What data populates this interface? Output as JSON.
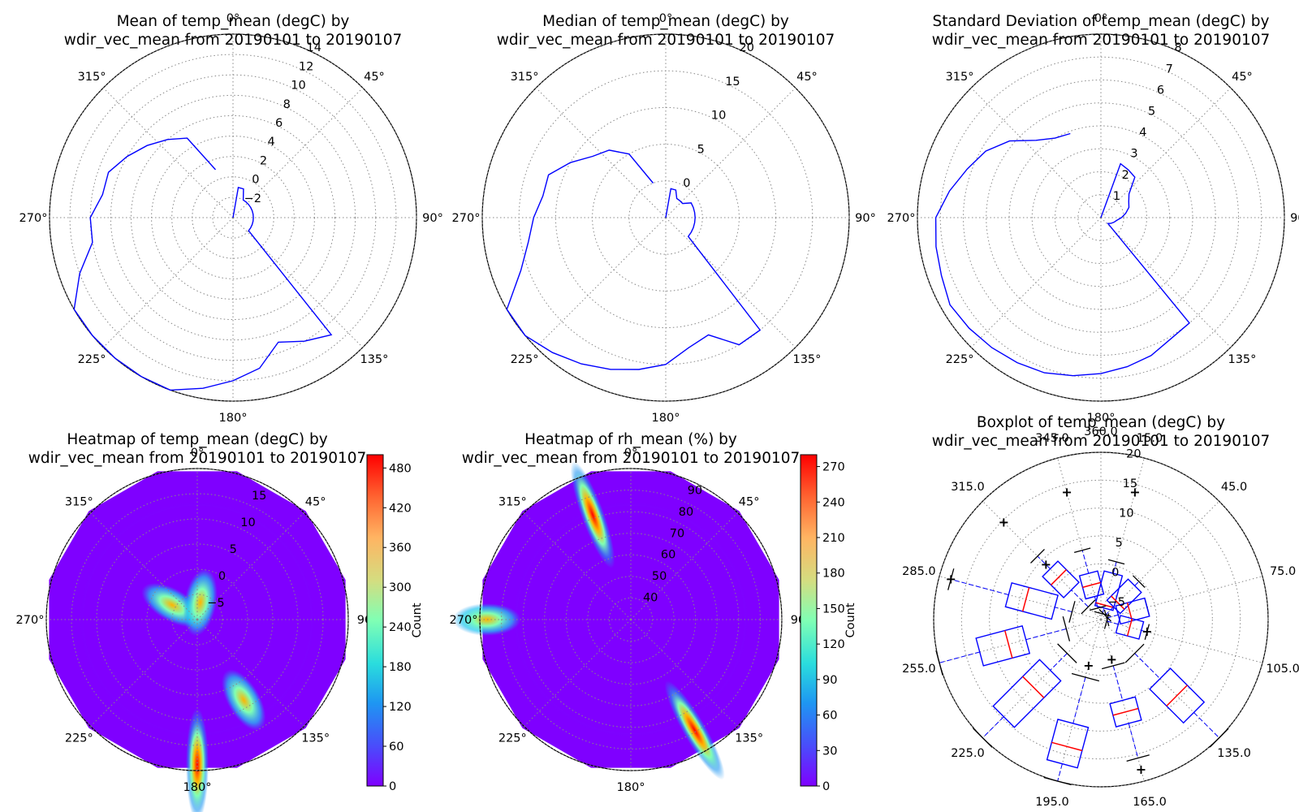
{
  "figure": {
    "background": "#ffffff",
    "line_color": "#0000ff",
    "median_color": "#ff0000"
  },
  "chart_data": [
    {
      "type": "line",
      "projection": "polar",
      "title": "Mean of temp_mean (degC) by\nwdir_vec_mean from 20190101 to 20190107",
      "angle_tick_labels": [
        "0°",
        "45°",
        "90°",
        "135°",
        "180°",
        "225°",
        "270°",
        "315°"
      ],
      "r_tick_labels": [
        "−2",
        "0",
        "2",
        "4",
        "6",
        "8",
        "10",
        "12",
        "14"
      ],
      "rlim": [
        -4,
        14
      ],
      "grid": true,
      "series": [
        {
          "x": [
            0,
            10,
            20,
            30,
            40,
            50,
            60,
            70,
            80,
            90,
            100,
            110,
            120,
            130,
            140,
            150,
            160,
            170,
            180,
            190,
            200,
            210,
            220,
            230,
            240,
            250,
            260,
            270,
            280,
            290,
            300,
            310,
            320,
            330,
            340
          ],
          "y": [
            -4,
            -1,
            -1,
            -2,
            -2,
            -2,
            -2,
            -2,
            -2,
            -2,
            -2,
            -2,
            -2,
            -2,
            11,
            10,
            9,
            11,
            12,
            13,
            14,
            14,
            14,
            14,
            14,
            12,
            10,
            10,
            9,
            9,
            8,
            7,
            6,
            5,
            1
          ]
        }
      ]
    },
    {
      "type": "line",
      "projection": "polar",
      "title": "Median of temp_mean (degC) by\nwdir_vec_mean from 20190101 to 20190107",
      "angle_tick_labels": [
        "0°",
        "45°",
        "90°",
        "135°",
        "180°",
        "225°",
        "270°",
        "315°"
      ],
      "r_tick_labels": [
        "0",
        "5",
        "10",
        "15",
        "20"
      ],
      "rlim": [
        -5,
        20
      ],
      "grid": true,
      "series": [
        {
          "x": [
            0,
            10,
            20,
            30,
            40,
            50,
            60,
            70,
            80,
            90,
            100,
            110,
            120,
            130,
            140,
            150,
            160,
            170,
            180,
            190,
            200,
            210,
            220,
            230,
            240,
            250,
            260,
            270,
            280,
            290,
            300,
            310,
            320,
            330,
            340
          ],
          "y": [
            -5,
            -1,
            -1,
            -2,
            -2,
            -2,
            -1,
            -1,
            -1,
            -1,
            -1,
            -1,
            -1,
            -1,
            15,
            15,
            12,
            13,
            15,
            16,
            17,
            18,
            19,
            20,
            20,
            16,
            14,
            13,
            12,
            12,
            10,
            8,
            7,
            5,
            0
          ]
        }
      ]
    },
    {
      "type": "line",
      "projection": "polar",
      "title": "Standard Deviation of temp_mean (degC) by\nwdir_vec_mean from 20190101 to 20190107",
      "angle_tick_labels": [
        "0°",
        "45°",
        "90°",
        "135°",
        "180°",
        "225°",
        "270°",
        "315°"
      ],
      "r_tick_labels": [
        "1",
        "2",
        "3",
        "4",
        "5",
        "6",
        "7",
        "8"
      ],
      "rlim": [
        0,
        8
      ],
      "grid": true,
      "series": [
        {
          "x": [
            0,
            10,
            20,
            30,
            40,
            50,
            60,
            70,
            80,
            90,
            100,
            110,
            120,
            130,
            140,
            150,
            160,
            170,
            180,
            190,
            200,
            210,
            220,
            230,
            240,
            250,
            260,
            270,
            280,
            290,
            300,
            310,
            320,
            330,
            340
          ],
          "y": [
            0,
            0,
            2.5,
            2.4,
            2.3,
            1.6,
            1.4,
            1.3,
            1.1,
            0.9,
            0.7,
            0.6,
            0.5,
            0.4,
            6.0,
            6.1,
            6.4,
            6.6,
            6.8,
            7.0,
            7.2,
            7.3,
            7.4,
            7.5,
            7.6,
            7.4,
            7.3,
            7.2,
            6.7,
            6.2,
            5.8,
            5.2,
            4.4,
            4.0,
            3.9
          ]
        }
      ]
    },
    {
      "type": "heatmap",
      "projection": "polar",
      "title": "Heatmap of temp_mean (degC) by\nwdir_vec_mean from 20190101 to 20190107",
      "angle_tick_labels": [
        "0°",
        "45°",
        "90",
        "135°",
        "180°",
        "225°",
        "270°",
        "315°"
      ],
      "r_tick_labels": [
        "−5",
        "0",
        "5",
        "10",
        "15"
      ],
      "rlim": [
        -8,
        18
      ],
      "colorbar": {
        "label": "Count",
        "ticks": [
          "0",
          "60",
          "120",
          "180",
          "240",
          "300",
          "360",
          "420",
          "480"
        ],
        "range": [
          0,
          500
        ]
      },
      "hotspots": [
        {
          "theta": 180,
          "r": 17,
          "count": 480
        },
        {
          "theta": 150,
          "r": 8,
          "count": 200
        },
        {
          "theta": 300,
          "r": -3,
          "count": 220
        },
        {
          "theta": 10,
          "r": -5,
          "count": 140
        }
      ]
    },
    {
      "type": "heatmap",
      "projection": "polar",
      "title": "Heatmap of rh_mean (%) by\nwdir_vec_mean from 20190101 to 20190107",
      "angle_tick_labels": [
        "0°",
        "45°",
        "90",
        "135°",
        "180°",
        "225°",
        "270°",
        "315°"
      ],
      "r_tick_labels": [
        "40",
        "50",
        "60",
        "70",
        "80",
        "90"
      ],
      "rlim": [
        30,
        95
      ],
      "colorbar": {
        "label": "Count",
        "ticks": [
          "0",
          "30",
          "60",
          "90",
          "120",
          "150",
          "180",
          "210",
          "240",
          "270"
        ],
        "range": [
          0,
          280
        ]
      },
      "hotspots": [
        {
          "theta": 340,
          "r": 78,
          "count": 270
        },
        {
          "theta": 150,
          "r": 85,
          "count": 250
        },
        {
          "theta": 270,
          "r": 92,
          "count": 180
        }
      ]
    },
    {
      "type": "boxplot",
      "projection": "polar",
      "title": "Boxplot of temp_mean (degC) by\nwdir_vec_mean from 20190101 to 20190107",
      "angle_tick_labels": [
        "15.0",
        "45.0",
        "75.0",
        "105.0",
        "135.0",
        "165.0",
        "195.0",
        "225.0",
        "255.0",
        "285.0",
        "315.0",
        "345.0",
        "360.0"
      ],
      "r_tick_labels": [
        "−5",
        "0",
        "5",
        "10",
        "15",
        "20"
      ],
      "rlim": [
        -8,
        20
      ],
      "boxes": [
        {
          "theta": 15,
          "q1": -6,
          "median": -5.5,
          "q3": 0,
          "wlo": -7,
          "whi": 2,
          "outliers": [
            14
          ]
        },
        {
          "theta": 45,
          "q1": -5,
          "median": -4,
          "q3": 0,
          "wlo": -7,
          "whi": 1,
          "outliers": []
        },
        {
          "theta": 75,
          "q1": -5,
          "median": -3,
          "q3": 0,
          "wlo": -7,
          "whi": 0,
          "outliers": []
        },
        {
          "theta": 105,
          "q1": -5,
          "median": -3,
          "q3": -1,
          "wlo": -7,
          "whi": 0,
          "outliers": [
            0
          ]
        },
        {
          "theta": 135,
          "q1": 6,
          "median": 10,
          "q3": 14,
          "wlo": 0,
          "whi": 20,
          "outliers": []
        },
        {
          "theta": 165,
          "q1": 6,
          "median": 8,
          "q3": 10,
          "wlo": 0,
          "whi": 16,
          "outliers": [
            -1,
            18
          ]
        },
        {
          "theta": 195,
          "q1": 10,
          "median": 14,
          "q3": 17,
          "wlo": 2,
          "whi": 20,
          "outliers": [
            0
          ]
        },
        {
          "theta": 225,
          "q1": 4,
          "median": 8,
          "q3": 15,
          "wlo": 0,
          "whi": 20,
          "outliers": []
        },
        {
          "theta": 255,
          "q1": 5,
          "median": 8,
          "q3": 13,
          "wlo": -2,
          "whi": 20,
          "outliers": []
        },
        {
          "theta": 285,
          "q1": 0,
          "median": 5,
          "q3": 8,
          "wlo": -3,
          "whi": 18,
          "outliers": [
            18
          ]
        },
        {
          "theta": 315,
          "q1": -1,
          "median": 2,
          "q3": 4,
          "wlo": -5,
          "whi": 7,
          "outliers": [
            15,
            5
          ]
        },
        {
          "theta": 345,
          "q1": -4,
          "median": -2,
          "q3": 0,
          "wlo": -6,
          "whi": 4,
          "outliers": [
            14
          ]
        }
      ]
    }
  ]
}
